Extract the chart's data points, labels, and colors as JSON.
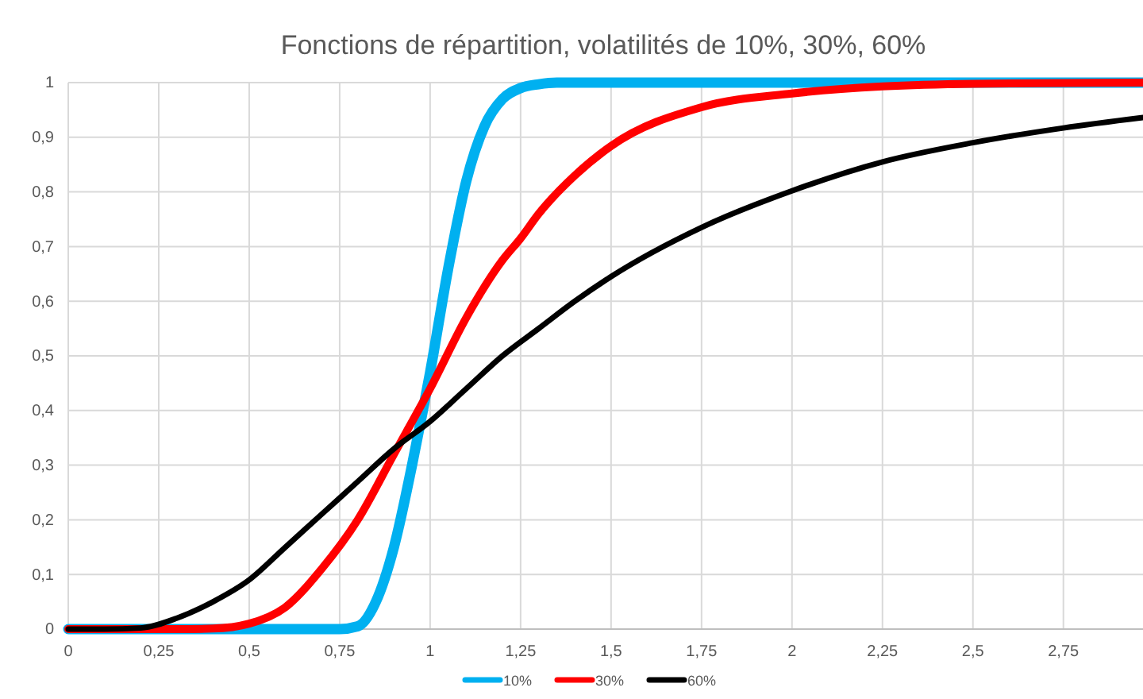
{
  "chart_data": {
    "type": "line",
    "title": "Fonctions de répartition, volatilités de 10%, 30%, 60%",
    "xlim": [
      0,
      2.97
    ],
    "xticks": [
      0,
      {
        "value": 0.25,
        "label": "0,25"
      },
      {
        "value": 0.5,
        "label": "0,5"
      },
      {
        "value": 0.75,
        "label": "0,75"
      },
      1,
      {
        "value": 1.25,
        "label": "1,25"
      },
      {
        "value": 1.5,
        "label": "1,5"
      },
      {
        "value": 1.75,
        "label": "1,75"
      },
      2,
      {
        "value": 2.25,
        "label": "2,25"
      },
      {
        "value": 2.5,
        "label": "2,5"
      },
      {
        "value": 2.75,
        "label": "2,75"
      }
    ],
    "ylim": [
      0,
      1
    ],
    "yticks": [
      0,
      {
        "value": 0.1,
        "label": "0,1"
      },
      {
        "value": 0.2,
        "label": "0,2"
      },
      {
        "value": 0.3,
        "label": "0,3"
      },
      {
        "value": 0.4,
        "label": "0,4"
      },
      {
        "value": 0.5,
        "label": "0,5"
      },
      {
        "value": 0.6,
        "label": "0,6"
      },
      {
        "value": 0.7,
        "label": "0,7"
      },
      {
        "value": 0.8,
        "label": "0,8"
      },
      {
        "value": 0.9,
        "label": "0,9"
      },
      1
    ],
    "grid": true,
    "legend": "bottom",
    "marker": "none",
    "line_style": "solid",
    "series": [
      {
        "name": "10%",
        "color": "#00b0f0",
        "x": [
          0,
          0.5,
          0.75,
          0.8,
          0.85,
          0.9,
          0.95,
          0.98,
          1,
          1.05,
          1.1,
          1.15,
          1.2,
          1.25,
          1.3,
          1.35,
          1.5,
          2,
          2.5,
          2.97
        ],
        "values": [
          0,
          0,
          0,
          0.005,
          0.05,
          0.15,
          0.3,
          0.4,
          0.47,
          0.66,
          0.82,
          0.92,
          0.97,
          0.99,
          0.997,
          1,
          1,
          1,
          1,
          1
        ]
      },
      {
        "name": "30%",
        "color": "#ff0000",
        "x": [
          0,
          0.3,
          0.4,
          0.5,
          0.6,
          0.7,
          0.8,
          0.9,
          1,
          1.1,
          1.2,
          1.25,
          1.3,
          1.4,
          1.5,
          1.75,
          2,
          2.25,
          2.5,
          2.97
        ],
        "values": [
          0,
          0,
          0.001,
          0.01,
          0.04,
          0.11,
          0.2,
          0.32,
          0.44,
          0.57,
          0.675,
          0.715,
          0.76,
          0.83,
          0.884,
          0.955,
          0.98,
          0.993,
          0.998,
          1
        ]
      },
      {
        "name": "60%",
        "color": "#000000",
        "x": [
          0,
          0.1,
          0.2,
          0.3,
          0.4,
          0.5,
          0.6,
          0.7,
          0.8,
          0.9,
          1,
          1.1,
          1.2,
          1.3,
          1.4,
          1.5,
          1.75,
          2,
          2.25,
          2.5,
          2.75,
          2.97
        ],
        "values": [
          0,
          0,
          0.002,
          0.02,
          0.05,
          0.09,
          0.15,
          0.21,
          0.27,
          0.33,
          0.38,
          0.44,
          0.5,
          0.55,
          0.6,
          0.645,
          0.735,
          0.802,
          0.855,
          0.89,
          0.917,
          0.936
        ]
      }
    ]
  }
}
